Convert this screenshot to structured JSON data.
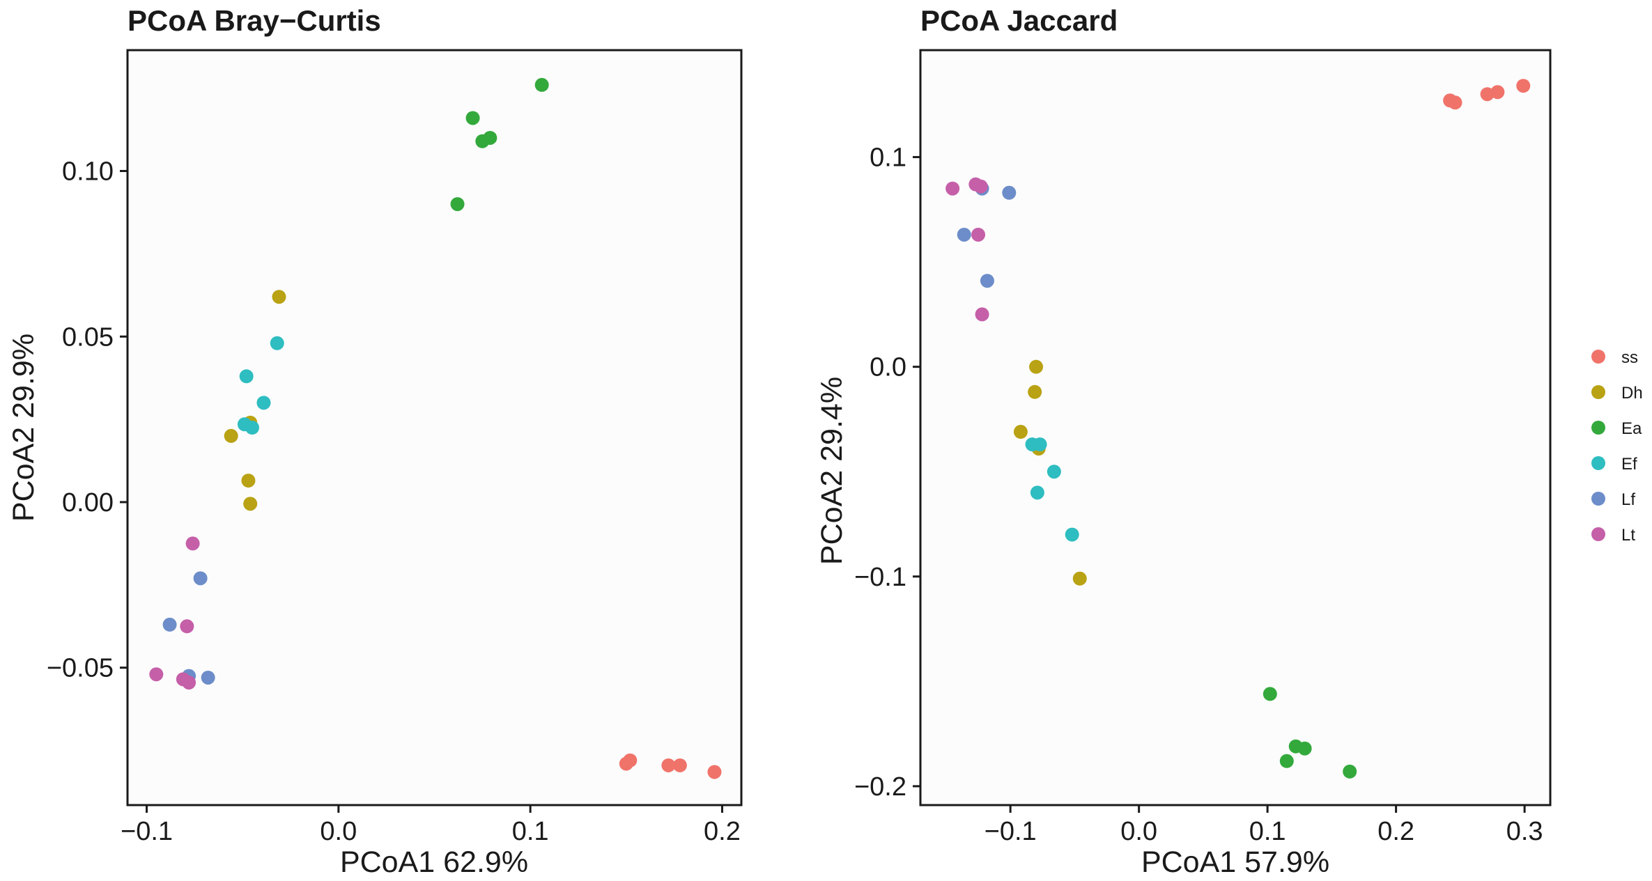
{
  "chart_data": [
    {
      "type": "scatter",
      "title": "PCoA Bray−Curtis",
      "xlabel": "PCoA1 62.9%",
      "ylabel": "PCoA2 29.9%",
      "xlim": [
        -0.11,
        0.21
      ],
      "ylim": [
        -0.0915,
        0.1365
      ],
      "xticks": [
        -0.1,
        0.0,
        0.1,
        0.2
      ],
      "xtick_labels": [
        "−0.1",
        "0.0",
        "0.1",
        "0.2"
      ],
      "yticks": [
        0.1,
        0.05,
        0.0,
        -0.05
      ],
      "ytick_labels": [
        "0.10",
        "0.05",
        "0.00",
        "−0.05"
      ],
      "grid": false,
      "series": [
        {
          "name": "ss",
          "points": [
            [
              0.15,
              -0.079
            ],
            [
              0.152,
              -0.078
            ],
            [
              0.172,
              -0.0795
            ],
            [
              0.178,
              -0.0795
            ],
            [
              0.196,
              -0.0815
            ]
          ]
        },
        {
          "name": "Dh",
          "points": [
            [
              -0.031,
              0.062
            ],
            [
              -0.056,
              0.02
            ],
            [
              -0.046,
              0.024
            ],
            [
              -0.047,
              0.0065
            ],
            [
              -0.046,
              -0.0005
            ]
          ]
        },
        {
          "name": "Ea",
          "points": [
            [
              0.106,
              0.126
            ],
            [
              0.07,
              0.116
            ],
            [
              0.075,
              0.109
            ],
            [
              0.079,
              0.11
            ],
            [
              0.062,
              0.09
            ]
          ]
        },
        {
          "name": "Ef",
          "points": [
            [
              -0.032,
              0.048
            ],
            [
              -0.048,
              0.038
            ],
            [
              -0.039,
              0.03
            ],
            [
              -0.049,
              0.0235
            ],
            [
              -0.045,
              0.0225
            ]
          ]
        },
        {
          "name": "Lf",
          "points": [
            [
              -0.072,
              -0.023
            ],
            [
              -0.088,
              -0.037
            ],
            [
              -0.078,
              -0.0525
            ],
            [
              -0.068,
              -0.053
            ]
          ]
        },
        {
          "name": "Lt",
          "points": [
            [
              -0.076,
              -0.0125
            ],
            [
              -0.079,
              -0.0375
            ],
            [
              -0.095,
              -0.052
            ],
            [
              -0.081,
              -0.0535
            ],
            [
              -0.078,
              -0.0545
            ]
          ]
        }
      ]
    },
    {
      "type": "scatter",
      "title": "PCoA Jaccard",
      "xlabel": "PCoA1 57.9%",
      "ylabel": "PCoA2 29.4%",
      "xlim": [
        -0.17,
        0.32
      ],
      "ylim": [
        -0.209,
        0.151
      ],
      "xticks": [
        -0.1,
        0.0,
        0.1,
        0.2,
        0.3
      ],
      "xtick_labels": [
        "−0.1",
        "0.0",
        "0.1",
        "0.2",
        "0.3"
      ],
      "yticks": [
        0.1,
        0.0,
        -0.1,
        -0.2
      ],
      "ytick_labels": [
        "0.1",
        "0.0",
        "−0.1",
        "−0.2"
      ],
      "grid": false,
      "series": [
        {
          "name": "ss",
          "points": [
            [
              0.242,
              0.127
            ],
            [
              0.246,
              0.126
            ],
            [
              0.271,
              0.13
            ],
            [
              0.279,
              0.131
            ],
            [
              0.299,
              0.134
            ]
          ]
        },
        {
          "name": "Dh",
          "points": [
            [
              -0.08,
              0.0
            ],
            [
              -0.081,
              -0.012
            ],
            [
              -0.092,
              -0.031
            ],
            [
              -0.078,
              -0.039
            ],
            [
              -0.046,
              -0.101
            ]
          ]
        },
        {
          "name": "Ea",
          "points": [
            [
              0.102,
              -0.156
            ],
            [
              0.122,
              -0.181
            ],
            [
              0.129,
              -0.182
            ],
            [
              0.115,
              -0.188
            ],
            [
              0.164,
              -0.193
            ]
          ]
        },
        {
          "name": "Ef",
          "points": [
            [
              -0.083,
              -0.037
            ],
            [
              -0.077,
              -0.037
            ],
            [
              -0.066,
              -0.05
            ],
            [
              -0.079,
              -0.06
            ],
            [
              -0.052,
              -0.08
            ]
          ]
        },
        {
          "name": "Lf",
          "points": [
            [
              -0.101,
              0.083
            ],
            [
              -0.122,
              0.085
            ],
            [
              -0.136,
              0.063
            ],
            [
              -0.118,
              0.041
            ]
          ]
        },
        {
          "name": "Lt",
          "points": [
            [
              -0.145,
              0.085
            ],
            [
              -0.127,
              0.087
            ],
            [
              -0.123,
              0.086
            ],
            [
              -0.125,
              0.063
            ],
            [
              -0.122,
              0.025
            ]
          ]
        }
      ]
    }
  ],
  "legend": {
    "placement": "right",
    "items": [
      {
        "label": "ss",
        "color": "#F0736A"
      },
      {
        "label": "Dh",
        "color": "#B9A213"
      },
      {
        "label": "Ea",
        "color": "#33A93C"
      },
      {
        "label": "Ef",
        "color": "#2EBDC0"
      },
      {
        "label": "Lf",
        "color": "#6C8DC9"
      },
      {
        "label": "Lt",
        "color": "#C55FA8"
      }
    ]
  }
}
